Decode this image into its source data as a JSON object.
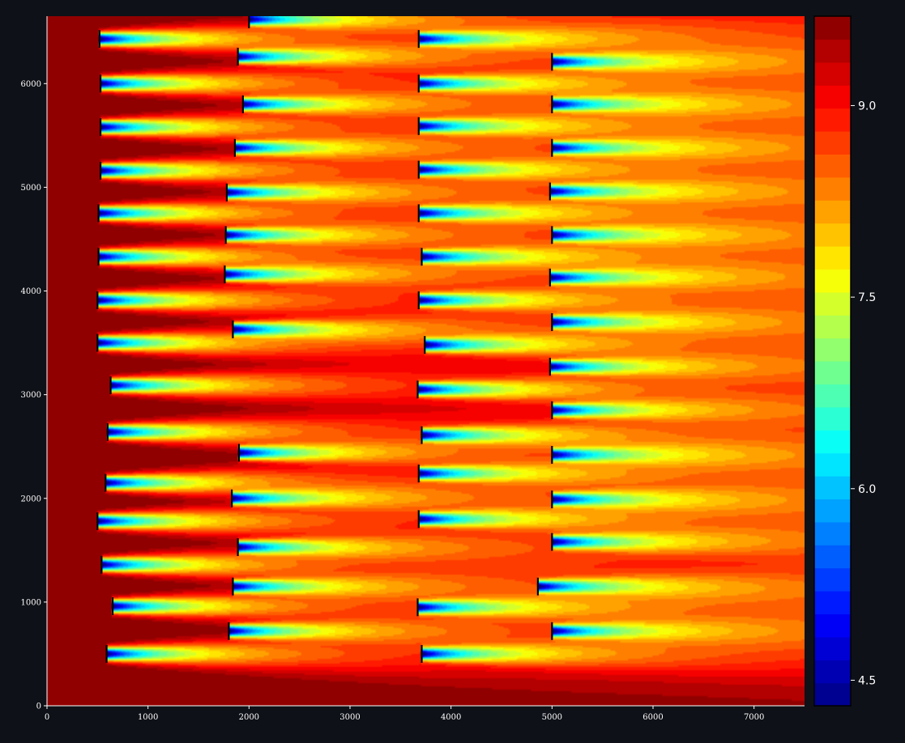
{
  "chart_data": {
    "type": "heatmap",
    "title": "",
    "xlabel": "",
    "ylabel": "",
    "xlim": [
      0,
      7500
    ],
    "ylim": [
      0,
      6650
    ],
    "x_ticks": [
      0,
      1000,
      2000,
      3000,
      4000,
      5000,
      6000,
      7000
    ],
    "y_ticks": [
      0,
      1000,
      2000,
      3000,
      4000,
      5000,
      6000
    ],
    "colorbar": {
      "colormap": "jet",
      "range": [
        4.3,
        9.7
      ],
      "ticks": [
        4.5,
        6.0,
        7.5,
        9.0
      ],
      "tick_labels": [
        "4.5",
        "6.0",
        "7.5",
        "9.0"
      ],
      "levels": 30
    },
    "freestream_value": 9.7,
    "turbines": [
      {
        "x": 2000,
        "y": 6620
      },
      {
        "x": 520,
        "y": 6430
      },
      {
        "x": 3680,
        "y": 6430
      },
      {
        "x": 1890,
        "y": 6260
      },
      {
        "x": 5000,
        "y": 6210
      },
      {
        "x": 530,
        "y": 6000
      },
      {
        "x": 3680,
        "y": 6000
      },
      {
        "x": 1940,
        "y": 5800
      },
      {
        "x": 5000,
        "y": 5800
      },
      {
        "x": 530,
        "y": 5580
      },
      {
        "x": 3680,
        "y": 5590
      },
      {
        "x": 1860,
        "y": 5380
      },
      {
        "x": 5000,
        "y": 5380
      },
      {
        "x": 530,
        "y": 5160
      },
      {
        "x": 3680,
        "y": 5170
      },
      {
        "x": 1780,
        "y": 4950
      },
      {
        "x": 4980,
        "y": 4960
      },
      {
        "x": 510,
        "y": 4750
      },
      {
        "x": 3680,
        "y": 4750
      },
      {
        "x": 1770,
        "y": 4540
      },
      {
        "x": 5000,
        "y": 4540
      },
      {
        "x": 510,
        "y": 4330
      },
      {
        "x": 3710,
        "y": 4330
      },
      {
        "x": 1760,
        "y": 4160
      },
      {
        "x": 4980,
        "y": 4130
      },
      {
        "x": 500,
        "y": 3910
      },
      {
        "x": 3680,
        "y": 3910
      },
      {
        "x": 1840,
        "y": 3630
      },
      {
        "x": 5000,
        "y": 3700
      },
      {
        "x": 500,
        "y": 3500
      },
      {
        "x": 3740,
        "y": 3480
      },
      {
        "x": 4980,
        "y": 3270
      },
      {
        "x": 630,
        "y": 3090
      },
      {
        "x": 3670,
        "y": 3050
      },
      {
        "x": 5000,
        "y": 2850
      },
      {
        "x": 600,
        "y": 2640
      },
      {
        "x": 3710,
        "y": 2610
      },
      {
        "x": 1900,
        "y": 2440
      },
      {
        "x": 5000,
        "y": 2420
      },
      {
        "x": 580,
        "y": 2150
      },
      {
        "x": 3680,
        "y": 2240
      },
      {
        "x": 1830,
        "y": 2000
      },
      {
        "x": 5000,
        "y": 1990
      },
      {
        "x": 500,
        "y": 1780
      },
      {
        "x": 3680,
        "y": 1800
      },
      {
        "x": 1890,
        "y": 1530
      },
      {
        "x": 5000,
        "y": 1580
      },
      {
        "x": 540,
        "y": 1360
      },
      {
        "x": 1840,
        "y": 1150
      },
      {
        "x": 4860,
        "y": 1150
      },
      {
        "x": 650,
        "y": 960
      },
      {
        "x": 3670,
        "y": 950
      },
      {
        "x": 1800,
        "y": 720
      },
      {
        "x": 5000,
        "y": 720
      },
      {
        "x": 590,
        "y": 500
      },
      {
        "x": 3710,
        "y": 500
      }
    ]
  }
}
